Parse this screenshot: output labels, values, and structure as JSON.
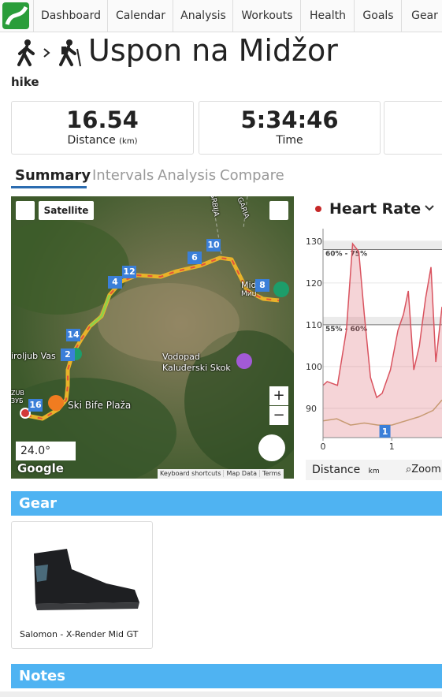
{
  "nav": [
    "Dashboard",
    "Calendar",
    "Analysis",
    "Workouts",
    "Health",
    "Goals",
    "Gear"
  ],
  "header": {
    "title": "Uspon na Midžor",
    "activity_type": "hike"
  },
  "stats": [
    {
      "value": "16.54",
      "label": "Distance",
      "unit": "(km)"
    },
    {
      "value": "5:34:46",
      "label": "Time"
    }
  ],
  "tabs": [
    "Summary",
    "Intervals",
    "Analysis",
    "Compare"
  ],
  "map": {
    "button": "Satellite",
    "places": [
      "Vodopad",
      "Kaluđerski Skok",
      "Ski Bife Plaža",
      "iroljub Vas",
      "Mid",
      "Миџ",
      "SRBIJA",
      "GARIA",
      "ZUB",
      "ЗУБ"
    ],
    "markers": [
      "2",
      "4",
      "6",
      "8",
      "10",
      "12",
      "14",
      "16"
    ],
    "temperature": "24.0°",
    "zoom_in": "+",
    "zoom_out": "−",
    "logo": "Google",
    "footer": [
      "Keyboard shortcuts",
      "Map Data",
      "Terms"
    ]
  },
  "chart_data": {
    "type": "line",
    "title": "Heart Rate",
    "x_label": "Distance",
    "x_unit": "km",
    "zoom": "Zoom",
    "xlim": [
      0,
      1.73
    ],
    "xticks": [
      0,
      1
    ],
    "ylim": [
      83,
      133
    ],
    "yticks": [
      90,
      100,
      110,
      120,
      130
    ],
    "zones": [
      {
        "label": "60% - 75%",
        "value": 128
      },
      {
        "label": "55% - 60%",
        "value": 110
      }
    ],
    "lap_markers": [
      {
        "label": "1",
        "x": 0.9
      }
    ],
    "series": [
      {
        "name": "Heart Rate",
        "color": "#d9535f",
        "x": [
          0,
          0.06,
          0.21,
          0.34,
          0.43,
          0.52,
          0.6,
          0.69,
          0.78,
          0.86,
          0.98,
          1.09,
          1.17,
          1.24,
          1.32,
          1.4,
          1.49,
          1.57,
          1.64,
          1.73
        ],
        "values": [
          95.5,
          96.4,
          95.5,
          108.7,
          129.4,
          127.5,
          112.5,
          97.4,
          92.6,
          93.6,
          99.2,
          108.7,
          112.5,
          118.1,
          99.2,
          104.9,
          116.2,
          123.8,
          101.1,
          114.3
        ]
      },
      {
        "color": "#c79a72",
        "x": [
          0,
          0.2,
          0.4,
          0.6,
          0.8,
          1.0,
          1.2,
          1.4,
          1.6,
          1.73
        ],
        "values": [
          87,
          87.5,
          86,
          86.5,
          86,
          86,
          87,
          88,
          89.5,
          92
        ]
      }
    ]
  },
  "gear": {
    "heading": "Gear",
    "items": [
      "Salomon - X-Render Mid GT"
    ]
  },
  "notes": {
    "heading": "Notes"
  }
}
